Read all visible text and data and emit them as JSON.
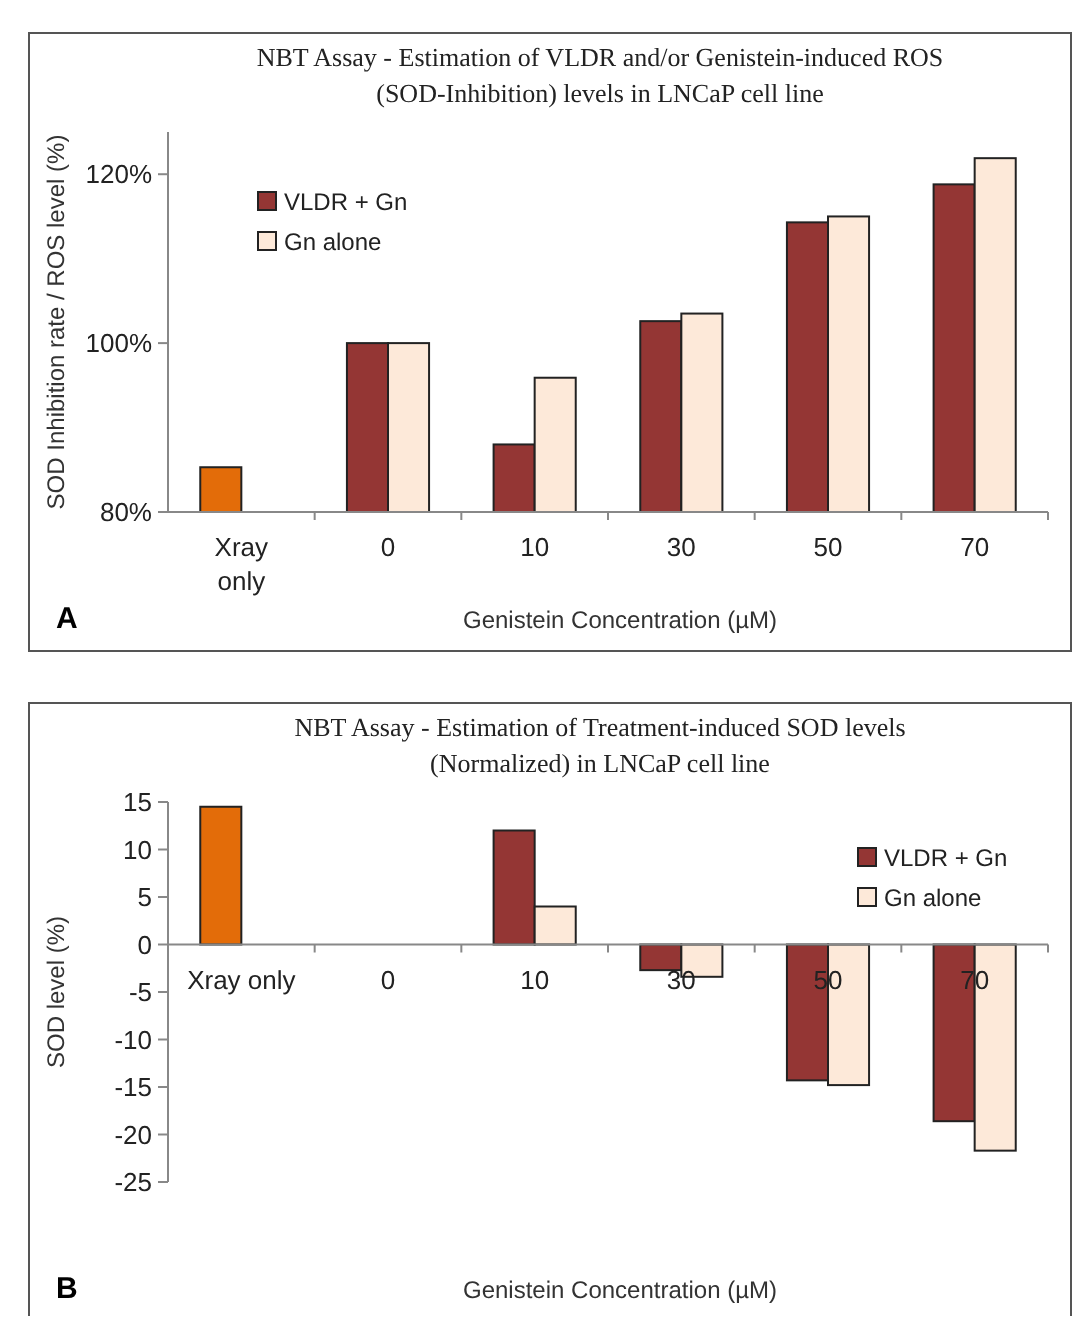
{
  "chart_data": [
    {
      "type": "bar",
      "title": "NBT Assay - Estimation of VLDR and/or  Genistein-induced ROS (SOD-Inhibition) levels in LNCaP cell line",
      "xlabel": "Genistein Concentration (µM)",
      "ylabel": "SOD Inhibition rate / ROS level (%)",
      "annotations": [
        "A"
      ],
      "categories": [
        "Xray only",
        "0",
        "10",
        "30",
        "50",
        "70"
      ],
      "series": [
        {
          "color": "#e36c09",
          "values": [
            85.3,
            null,
            null,
            null,
            null,
            null
          ]
        },
        {
          "name": "VLDR + Gn",
          "color": "#943634",
          "values": [
            null,
            100,
            88.0,
            102.6,
            114.3,
            118.8
          ]
        },
        {
          "name": "Gn alone",
          "color": "#fde9d9",
          "values": [
            null,
            100,
            95.9,
            103.5,
            115.0,
            121.9
          ]
        }
      ],
      "ylim": [
        80,
        125
      ],
      "yticks": [
        {
          "value": 80,
          "label": "80%"
        },
        {
          "value": 100,
          "label": "100%"
        },
        {
          "value": 120,
          "label": "120%"
        }
      ],
      "grid": false,
      "legend": "top left"
    },
    {
      "type": "bar",
      "title": "NBT Assay - Estimation of Treatment-induced SOD levels (Normalized) in LNCaP cell line",
      "xlabel": "Genistein Concentration (µM)",
      "ylabel": "SOD level (%)",
      "annotations": [
        "B"
      ],
      "categories": [
        "Xray only",
        "0",
        "10",
        "30",
        "50",
        "70"
      ],
      "series": [
        {
          "color": "#e36c09",
          "values": [
            14.5,
            null,
            null,
            null,
            null,
            null
          ]
        },
        {
          "name": "VLDR + Gn",
          "color": "#943634",
          "values": [
            null,
            null,
            12.0,
            -2.7,
            -14.3,
            -18.6
          ]
        },
        {
          "name": "Gn alone",
          "color": "#fde9d9",
          "values": [
            null,
            null,
            4.0,
            -3.4,
            -14.8,
            -21.7
          ]
        }
      ],
      "ylim": [
        -25,
        15
      ],
      "yticks": [
        15,
        10,
        5,
        0,
        -5,
        -10,
        -15,
        -20,
        -25
      ],
      "grid": false,
      "legend": "right"
    }
  ]
}
